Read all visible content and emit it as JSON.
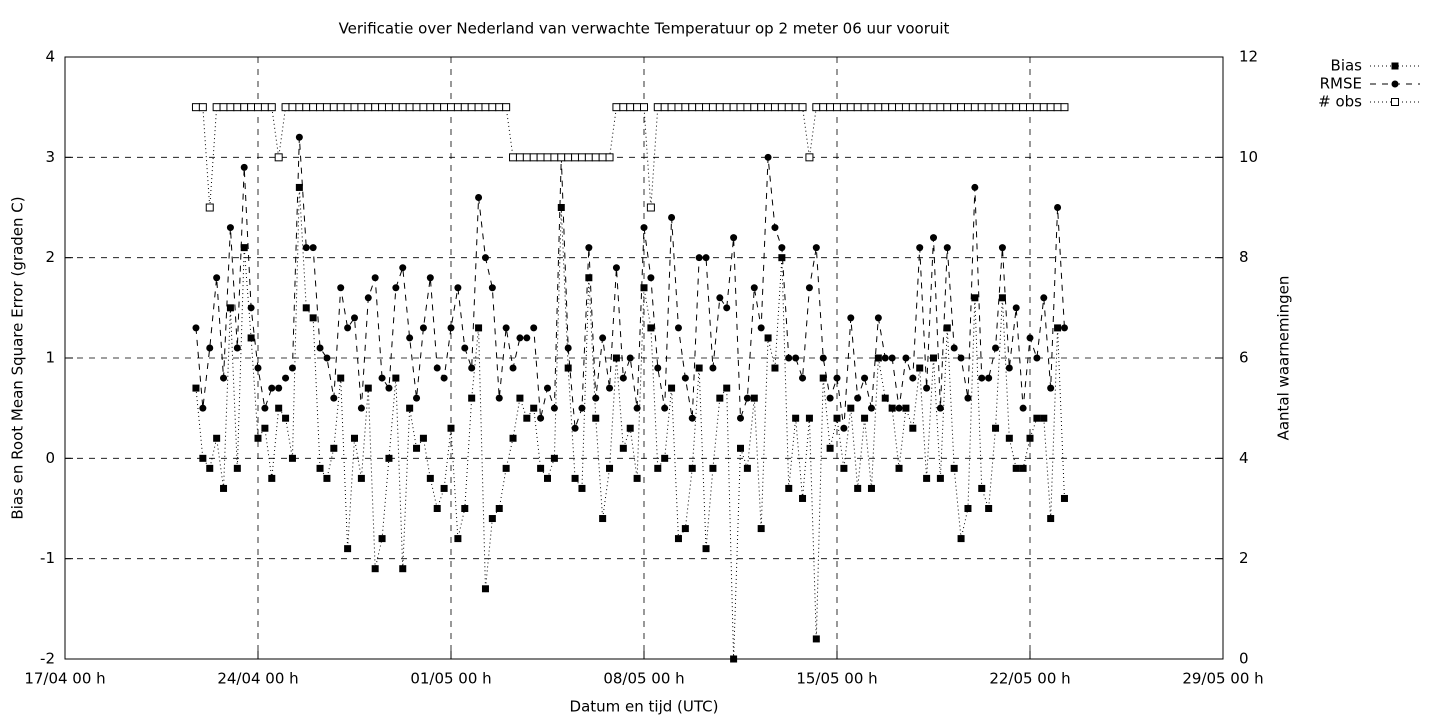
{
  "chart_data": {
    "type": "line",
    "title": "Verificatie over Nederland van verwachte Temperatuur op 2 meter 06 uur vooruit",
    "x_label": "Datum en tijd (UTC)",
    "y_label": "Bias en Root Mean Square Error (graden C)",
    "y2_label": "Aantal waarnemingen",
    "xlim": [
      "17/04 00 h",
      "29/05 00 h"
    ],
    "xticks": [
      "17/04 00 h",
      "24/04 00 h",
      "01/05 00 h",
      "08/05 00 h",
      "15/05 00 h",
      "22/05 00 h",
      "29/05 00 h"
    ],
    "ylim": [
      -2,
      4
    ],
    "yticks": [
      -2,
      -1,
      0,
      1,
      2,
      3,
      4
    ],
    "y2lim": [
      0,
      12
    ],
    "y2ticks": [
      0,
      2,
      4,
      6,
      8,
      10,
      12
    ],
    "grid": true,
    "legend": "top-right",
    "x": [
      "21/04 18 h",
      "22/04 00 h",
      "22/04 06 h",
      "22/04 12 h",
      "22/04 18 h",
      "23/04 00 h",
      "23/04 06 h",
      "23/04 12 h",
      "23/04 18 h",
      "24/04 00 h",
      "24/04 06 h",
      "24/04 12 h",
      "24/04 18 h",
      "25/04 00 h",
      "25/04 06 h",
      "25/04 12 h",
      "25/04 18 h",
      "26/04 00 h",
      "26/04 06 h",
      "26/04 12 h",
      "26/04 18 h",
      "27/04 00 h",
      "27/04 06 h",
      "27/04 12 h",
      "27/04 18 h",
      "28/04 00 h",
      "28/04 06 h",
      "28/04 12 h",
      "28/04 18 h",
      "29/04 00 h",
      "29/04 06 h",
      "29/04 12 h",
      "29/04 18 h",
      "30/04 00 h",
      "30/04 06 h",
      "30/04 12 h",
      "30/04 18 h",
      "01/05 00 h",
      "01/05 06 h",
      "01/05 12 h",
      "01/05 18 h",
      "02/05 00 h",
      "02/05 06 h",
      "02/05 12 h",
      "02/05 18 h",
      "03/05 00 h",
      "03/05 06 h",
      "03/05 12 h",
      "03/05 18 h",
      "04/05 00 h",
      "04/05 06 h",
      "04/05 12 h",
      "04/05 18 h",
      "05/05 00 h",
      "05/05 06 h",
      "05/05 12 h",
      "05/05 18 h",
      "06/05 00 h",
      "06/05 06 h",
      "06/05 12 h",
      "06/05 18 h",
      "07/05 00 h",
      "07/05 06 h",
      "07/05 12 h",
      "07/05 18 h",
      "08/05 00 h",
      "08/05 06 h",
      "08/05 12 h",
      "08/05 18 h",
      "09/05 00 h",
      "09/05 06 h",
      "09/05 12 h",
      "09/05 18 h",
      "10/05 00 h",
      "10/05 06 h",
      "10/05 12 h",
      "10/05 18 h",
      "11/05 00 h",
      "11/05 06 h",
      "11/05 12 h",
      "11/05 18 h",
      "12/05 00 h",
      "12/05 06 h",
      "12/05 12 h",
      "12/05 18 h",
      "13/05 00 h",
      "13/05 06 h",
      "13/05 12 h",
      "13/05 18 h",
      "14/05 00 h",
      "14/05 06 h",
      "14/05 12 h",
      "14/05 18 h",
      "15/05 00 h",
      "15/05 06 h",
      "15/05 12 h",
      "15/05 18 h",
      "16/05 00 h",
      "16/05 06 h",
      "16/05 12 h",
      "16/05 18 h",
      "17/05 00 h",
      "17/05 06 h",
      "17/05 12 h",
      "17/05 18 h",
      "18/05 00 h",
      "18/05 06 h",
      "18/05 12 h",
      "18/05 18 h",
      "19/05 00 h",
      "19/05 06 h",
      "19/05 12 h",
      "19/05 18 h",
      "20/05 00 h",
      "20/05 06 h",
      "20/05 12 h",
      "20/05 18 h",
      "21/05 00 h",
      "21/05 06 h",
      "21/05 12 h",
      "21/05 18 h",
      "22/05 00 h",
      "22/05 06 h",
      "22/05 12 h",
      "22/05 18 h",
      "23/05 00 h",
      "23/05 06 h"
    ],
    "series": [
      {
        "name": "Bias",
        "color": "#000000",
        "style": "dotted",
        "marker": "square",
        "values": [
          0.7,
          0.0,
          -0.1,
          0.2,
          -0.3,
          1.5,
          -0.1,
          2.1,
          1.2,
          0.2,
          0.3,
          -0.2,
          0.5,
          0.4,
          0.0,
          2.7,
          1.5,
          1.4,
          -0.1,
          -0.2,
          0.1,
          0.8,
          -0.9,
          0.2,
          -0.2,
          0.7,
          -1.1,
          -0.8,
          0.0,
          0.8,
          -1.1,
          0.5,
          0.1,
          0.2,
          -0.2,
          -0.5,
          -0.3,
          0.3,
          -0.8,
          -0.5,
          0.6,
          1.3,
          -1.3,
          -0.6,
          -0.5,
          -0.1,
          0.2,
          0.6,
          0.4,
          0.5,
          -0.1,
          -0.2,
          0.0,
          2.5,
          0.9,
          -0.2,
          -0.3,
          1.8,
          0.4,
          -0.6,
          -0.1,
          1.0,
          0.1,
          0.3,
          -0.2,
          1.7,
          1.3,
          -0.1,
          0.0,
          0.7,
          -0.8,
          -0.7,
          -0.1,
          0.9,
          -0.9,
          -0.1,
          0.6,
          0.7,
          -2.0,
          0.1,
          -0.1,
          0.6,
          -0.7,
          1.2,
          0.9,
          2.0,
          -0.3,
          0.4,
          -0.4,
          0.4,
          -1.8,
          0.8,
          0.1,
          0.4,
          -0.1,
          0.5,
          -0.3,
          0.4,
          -0.3,
          1.0,
          0.6,
          0.5,
          -0.1,
          0.5,
          0.3,
          0.9,
          -0.2,
          1.0,
          -0.2,
          1.3,
          -0.1,
          -0.8,
          -0.5,
          1.6,
          -0.3,
          -0.5,
          0.3,
          1.6,
          0.2,
          -0.1,
          -0.1,
          0.2,
          0.4,
          0.4,
          -0.6,
          1.3,
          -0.4
        ]
      },
      {
        "name": "RMSE",
        "color": "#000000",
        "style": "dashed",
        "marker": "circle",
        "values": [
          1.3,
          0.5,
          1.1,
          1.8,
          0.8,
          2.3,
          1.1,
          2.9,
          1.5,
          0.9,
          0.5,
          0.7,
          0.7,
          0.8,
          0.9,
          3.2,
          2.1,
          2.1,
          1.1,
          1.0,
          0.6,
          1.7,
          1.3,
          1.4,
          0.5,
          1.6,
          1.8,
          0.8,
          0.7,
          1.7,
          1.9,
          1.2,
          0.6,
          1.3,
          1.8,
          0.9,
          0.8,
          1.3,
          1.7,
          1.1,
          0.9,
          2.6,
          2.0,
          1.7,
          0.6,
          1.3,
          0.9,
          1.2,
          1.2,
          1.3,
          0.4,
          0.7,
          0.5,
          3.0,
          1.1,
          0.3,
          0.5,
          2.1,
          0.6,
          1.2,
          0.7,
          1.9,
          0.8,
          1.0,
          0.5,
          2.3,
          1.8,
          0.9,
          0.5,
          2.4,
          1.3,
          0.8,
          0.4,
          2.0,
          2.0,
          0.9,
          1.6,
          1.5,
          2.2,
          0.4,
          0.6,
          1.7,
          1.3,
          3.0,
          2.3,
          2.1,
          1.0,
          1.0,
          0.8,
          1.7,
          2.1,
          1.0,
          0.6,
          0.8,
          0.3,
          1.4,
          0.6,
          0.8,
          0.5,
          1.4,
          1.0,
          1.0,
          0.5,
          1.0,
          0.8,
          2.1,
          0.7,
          2.2,
          0.5,
          2.1,
          1.1,
          1.0,
          0.6,
          2.7,
          0.8,
          0.8,
          1.1,
          2.1,
          0.9,
          1.5,
          0.5,
          1.2,
          1.0,
          1.6,
          0.7,
          2.5,
          1.3
        ]
      },
      {
        "name": "# obs",
        "color": "#000000",
        "style": "dotted",
        "marker": "open-square",
        "axis": "y2",
        "values": [
          11,
          11,
          9,
          11,
          11,
          11,
          11,
          11,
          11,
          11,
          11,
          11,
          10,
          11,
          11,
          11,
          11,
          11,
          11,
          11,
          11,
          11,
          11,
          11,
          11,
          11,
          11,
          11,
          11,
          11,
          11,
          11,
          11,
          11,
          11,
          11,
          11,
          11,
          11,
          11,
          11,
          11,
          11,
          11,
          11,
          11,
          10,
          10,
          10,
          10,
          10,
          10,
          10,
          10,
          10,
          10,
          10,
          10,
          10,
          10,
          10,
          11,
          11,
          11,
          11,
          11,
          9,
          11,
          11,
          11,
          11,
          11,
          11,
          11,
          11,
          11,
          11,
          11,
          11,
          11,
          11,
          11,
          11,
          11,
          11,
          11,
          11,
          11,
          11,
          10,
          11,
          11,
          11,
          11,
          11,
          11,
          11,
          11,
          11,
          11,
          11,
          11,
          11,
          11,
          11,
          11,
          11,
          11,
          11,
          11,
          11,
          11,
          11,
          11,
          11,
          11,
          11,
          11,
          11,
          11,
          11,
          11,
          11,
          11,
          11,
          11,
          11
        ]
      }
    ]
  }
}
